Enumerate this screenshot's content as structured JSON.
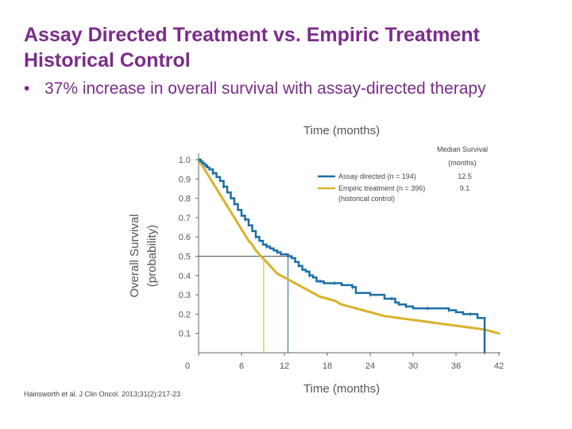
{
  "slide": {
    "title_line1": "Assay Directed Treatment vs. Empiric Treatment",
    "title_line2": "Historical Control",
    "bullet_char": "•",
    "bullet_text": "37% increase in overall survival with assay-directed therapy",
    "source": "Hainsworth et al. J Clin Oncol. 2013;31(2):217-23"
  },
  "colors": {
    "title": "#7b2c8a",
    "assay": "#1a6fa8",
    "empiric": "#d8b22b",
    "axis": "#666666"
  },
  "chart_data": {
    "type": "line",
    "title": "Time (months)",
    "xlabel": "Time (months)",
    "ylabel_line1": "Overall Survival",
    "ylabel_line2": "(probability)",
    "xlim": [
      0,
      42
    ],
    "ylim": [
      0,
      1.0
    ],
    "xticks": [
      0,
      6,
      12,
      18,
      24,
      30,
      36,
      42
    ],
    "yticks": [
      0.1,
      0.2,
      0.3,
      0.4,
      0.5,
      0.6,
      0.7,
      0.8,
      0.9,
      1.0
    ],
    "grid": false,
    "legend_header_line1": "Median Survival",
    "legend_header_line2": "(months)",
    "legend_position": "top-right",
    "series": [
      {
        "name": "Assay directed (n = 194)",
        "median": "12.5",
        "median_months": 12.5,
        "color": "#1a6fa8",
        "x": [
          0,
          0.3,
          0.6,
          0.9,
          1.2,
          1.5,
          2.0,
          2.5,
          3.0,
          3.5,
          4.0,
          4.5,
          5.0,
          5.5,
          6.0,
          6.5,
          7.0,
          7.5,
          8.0,
          8.5,
          9.0,
          9.5,
          10.0,
          10.5,
          11.0,
          11.5,
          12.0,
          12.5,
          13.0,
          13.5,
          14.0,
          14.5,
          15.0,
          15.5,
          16.0,
          16.5,
          17.0,
          17.5,
          18.0,
          19.0,
          20.0,
          21.0,
          21.5,
          22.0,
          23.0,
          24.0,
          25.0,
          26.0,
          27.0,
          27.5,
          28.0,
          29.0,
          30.0,
          31.0,
          32.0,
          33.0,
          34.0,
          35.0,
          36.0,
          37.0,
          38.0,
          39.0,
          40.0,
          40.0
        ],
        "y": [
          1.0,
          0.99,
          0.98,
          0.97,
          0.96,
          0.95,
          0.93,
          0.91,
          0.89,
          0.86,
          0.83,
          0.8,
          0.77,
          0.74,
          0.71,
          0.69,
          0.66,
          0.63,
          0.6,
          0.58,
          0.56,
          0.55,
          0.54,
          0.53,
          0.52,
          0.51,
          0.51,
          0.5,
          0.49,
          0.47,
          0.45,
          0.43,
          0.42,
          0.4,
          0.39,
          0.37,
          0.37,
          0.36,
          0.36,
          0.36,
          0.35,
          0.35,
          0.34,
          0.31,
          0.31,
          0.3,
          0.3,
          0.28,
          0.28,
          0.26,
          0.25,
          0.24,
          0.23,
          0.23,
          0.23,
          0.23,
          0.23,
          0.22,
          0.21,
          0.2,
          0.2,
          0.18,
          0.18,
          0.0
        ]
      },
      {
        "name": "Empiric treatment (n = 396)",
        "name_line2": "(historical control)",
        "median": "9.1",
        "median_months": 9.1,
        "color": "#d8b22b",
        "x": [
          0,
          0.5,
          1.0,
          1.5,
          2.0,
          2.5,
          3.0,
          3.5,
          4.0,
          4.5,
          5.0,
          5.5,
          6.0,
          6.5,
          7.0,
          7.5,
          8.0,
          8.5,
          9.0,
          9.5,
          10.0,
          10.5,
          11.0,
          11.5,
          12.0,
          13.0,
          14.0,
          15.0,
          16.0,
          17.0,
          18.0,
          19.0,
          20.0,
          21.0,
          22.0,
          23.0,
          24.0,
          26.0,
          28.0,
          30.0,
          32.0,
          34.0,
          36.0,
          38.0,
          40.0,
          41.0,
          42.0
        ],
        "y": [
          1.0,
          0.97,
          0.94,
          0.91,
          0.88,
          0.85,
          0.82,
          0.79,
          0.76,
          0.73,
          0.7,
          0.67,
          0.64,
          0.61,
          0.58,
          0.56,
          0.53,
          0.51,
          0.49,
          0.47,
          0.45,
          0.43,
          0.41,
          0.4,
          0.39,
          0.37,
          0.35,
          0.33,
          0.31,
          0.29,
          0.28,
          0.27,
          0.25,
          0.24,
          0.23,
          0.22,
          0.21,
          0.19,
          0.18,
          0.17,
          0.16,
          0.15,
          0.14,
          0.13,
          0.12,
          0.11,
          0.1
        ]
      }
    ]
  }
}
